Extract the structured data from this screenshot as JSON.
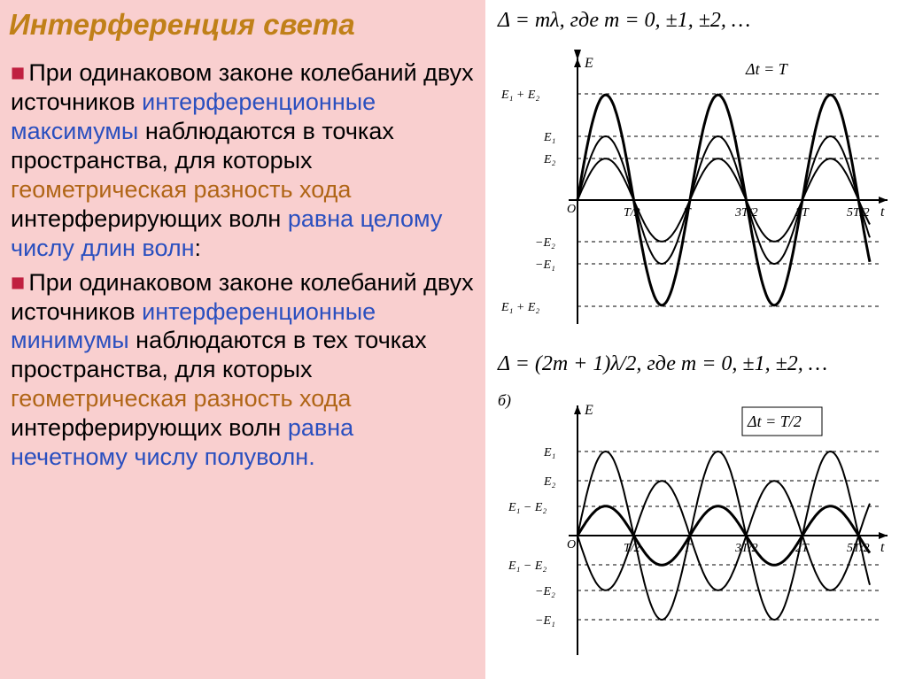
{
  "title": "Интерференция света",
  "paragraphs": {
    "p1a": "При одинаковом законе колебаний двух источников ",
    "p1b": "интерференционные максимумы ",
    "p1c": "наблюдаются в точках пространства, для которых ",
    "p1d": "геометрическая разность хода ",
    "p1e": "интерферирующих волн ",
    "p1f": "равна целому числу длин волн",
    "p1g": ":",
    "p2a": "При одинаковом законе колебаний двух источников ",
    "p2b": "интерференционные минимумы ",
    "p2c": "наблюдаются в тех точках пространства, для которых ",
    "p2d": "геометрическая разность хода ",
    "p2e": "интерферирующих волн ",
    "p2f": "равна нечетному числу полуволн."
  },
  "formulas": {
    "f1": "Δ = mλ, где m = 0, ±1, ±2, …",
    "f2": "Δ = (2m + 1)λ/2, где m = 0, ±1, ±2, …"
  },
  "diagram1": {
    "type": "waveform-superposition",
    "note": "Δt = T",
    "y_labels_pos": [
      "E₁ + E₂",
      "E₁",
      "E₂"
    ],
    "y_labels_neg": [
      "−E₂",
      "−E₁",
      "E₁ + E₂"
    ],
    "y_axis_label": "E",
    "x_axis_label": "t",
    "x_ticks": [
      "T/2",
      "T",
      "3T/2",
      "2T",
      "5T/2"
    ],
    "line_color": "#000000",
    "dash_color": "#000000",
    "background_color": "#ffffff",
    "xlim": [
      0,
      2.6
    ],
    "ylim": [
      -2.1,
      2.1
    ],
    "series": [
      {
        "name": "E1",
        "amplitude": 1.0,
        "width": 2
      },
      {
        "name": "E2",
        "amplitude": 0.65,
        "width": 2
      },
      {
        "name": "sum",
        "amplitude": 1.65,
        "width": 3
      }
    ]
  },
  "diagram2": {
    "type": "waveform-superposition",
    "panel_letter": "б)",
    "note": "Δt = T/2",
    "y_labels_pos": [
      "E₁",
      "E₂",
      "E₁ − E₂"
    ],
    "y_labels_neg": [
      "E₁ − E₂",
      "−E₂",
      "−E₁"
    ],
    "y_axis_label": "E",
    "x_axis_label": "t",
    "x_ticks": [
      "T/2",
      "T",
      "3T/2",
      "2T",
      "5T/2"
    ],
    "line_color": "#000000",
    "dash_color": "#000000",
    "background_color": "#ffffff",
    "xlim": [
      0,
      2.6
    ],
    "ylim": [
      -1.4,
      1.4
    ],
    "series": [
      {
        "name": "E1",
        "amplitude": 1.0,
        "phase": 0,
        "width": 2
      },
      {
        "name": "E2",
        "amplitude": 0.65,
        "phase": 3.14159,
        "width": 2
      },
      {
        "name": "diff",
        "amplitude": 0.35,
        "width": 3
      }
    ]
  }
}
